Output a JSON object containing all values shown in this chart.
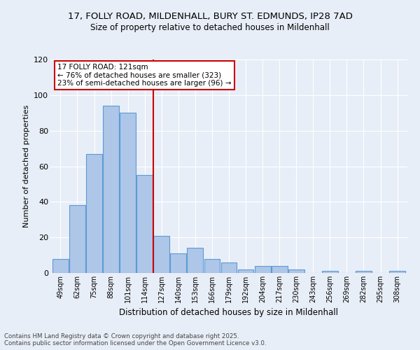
{
  "title_line1": "17, FOLLY ROAD, MILDENHALL, BURY ST. EDMUNDS, IP28 7AD",
  "title_line2": "Size of property relative to detached houses in Mildenhall",
  "xlabel": "Distribution of detached houses by size in Mildenhall",
  "ylabel": "Number of detached properties",
  "categories": [
    "49sqm",
    "62sqm",
    "75sqm",
    "88sqm",
    "101sqm",
    "114sqm",
    "127sqm",
    "140sqm",
    "153sqm",
    "166sqm",
    "179sqm",
    "192sqm",
    "204sqm",
    "217sqm",
    "230sqm",
    "243sqm",
    "256sqm",
    "269sqm",
    "282sqm",
    "295sqm",
    "308sqm"
  ],
  "values": [
    8,
    38,
    67,
    94,
    90,
    55,
    21,
    11,
    14,
    8,
    6,
    2,
    4,
    4,
    2,
    0,
    1,
    0,
    1,
    0,
    1
  ],
  "bar_color": "#aec6e8",
  "bar_edge_color": "#5b9bd5",
  "vline_index": 5.5,
  "vline_color": "#cc0000",
  "annotation_title": "17 FOLLY ROAD: 121sqm",
  "annotation_line1": "← 76% of detached houses are smaller (323)",
  "annotation_line2": "23% of semi-detached houses are larger (96) →",
  "annotation_box_color": "#ffffff",
  "annotation_box_edge": "#cc0000",
  "ylim": [
    0,
    120
  ],
  "yticks": [
    0,
    20,
    40,
    60,
    80,
    100,
    120
  ],
  "background_color": "#e8eef7",
  "grid_color": "#ffffff",
  "footnote_line1": "Contains HM Land Registry data © Crown copyright and database right 2025.",
  "footnote_line2": "Contains public sector information licensed under the Open Government Licence v3.0."
}
